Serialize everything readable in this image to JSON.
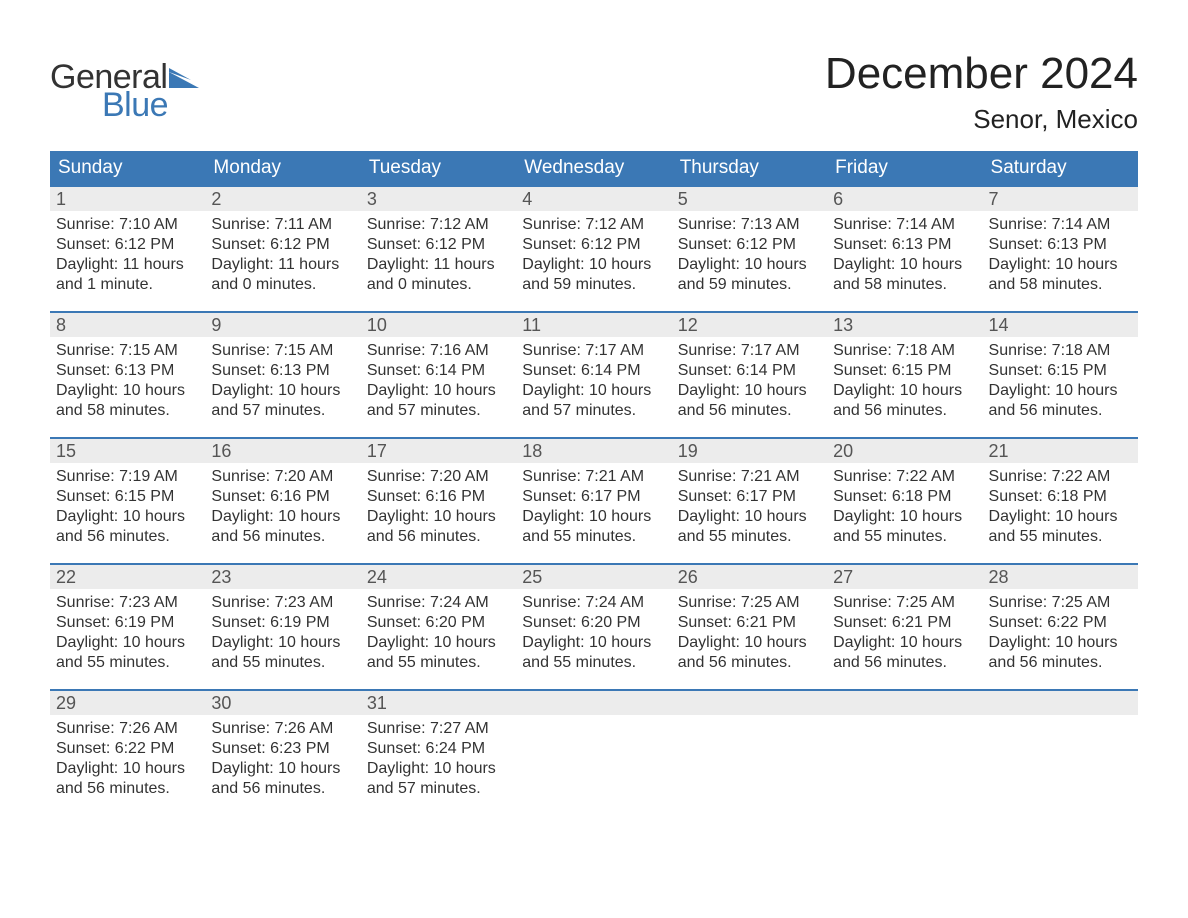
{
  "brand": {
    "general": "General",
    "blue": "Blue",
    "flag_color": "#3b78b5"
  },
  "title": {
    "month_year": "December 2024",
    "location": "Senor, Mexico"
  },
  "colors": {
    "header_bg": "#3b78b5",
    "header_text": "#ffffff",
    "daynum_bg": "#ececec",
    "daynum_text": "#555555",
    "body_text": "#333333",
    "week_border": "#3b78b5",
    "page_bg": "#ffffff"
  },
  "day_headers": [
    "Sunday",
    "Monday",
    "Tuesday",
    "Wednesday",
    "Thursday",
    "Friday",
    "Saturday"
  ],
  "weeks": [
    [
      {
        "n": "1",
        "sunrise": "Sunrise: 7:10 AM",
        "sunset": "Sunset: 6:12 PM",
        "d1": "Daylight: 11 hours",
        "d2": "and 1 minute."
      },
      {
        "n": "2",
        "sunrise": "Sunrise: 7:11 AM",
        "sunset": "Sunset: 6:12 PM",
        "d1": "Daylight: 11 hours",
        "d2": "and 0 minutes."
      },
      {
        "n": "3",
        "sunrise": "Sunrise: 7:12 AM",
        "sunset": "Sunset: 6:12 PM",
        "d1": "Daylight: 11 hours",
        "d2": "and 0 minutes."
      },
      {
        "n": "4",
        "sunrise": "Sunrise: 7:12 AM",
        "sunset": "Sunset: 6:12 PM",
        "d1": "Daylight: 10 hours",
        "d2": "and 59 minutes."
      },
      {
        "n": "5",
        "sunrise": "Sunrise: 7:13 AM",
        "sunset": "Sunset: 6:12 PM",
        "d1": "Daylight: 10 hours",
        "d2": "and 59 minutes."
      },
      {
        "n": "6",
        "sunrise": "Sunrise: 7:14 AM",
        "sunset": "Sunset: 6:13 PM",
        "d1": "Daylight: 10 hours",
        "d2": "and 58 minutes."
      },
      {
        "n": "7",
        "sunrise": "Sunrise: 7:14 AM",
        "sunset": "Sunset: 6:13 PM",
        "d1": "Daylight: 10 hours",
        "d2": "and 58 minutes."
      }
    ],
    [
      {
        "n": "8",
        "sunrise": "Sunrise: 7:15 AM",
        "sunset": "Sunset: 6:13 PM",
        "d1": "Daylight: 10 hours",
        "d2": "and 58 minutes."
      },
      {
        "n": "9",
        "sunrise": "Sunrise: 7:15 AM",
        "sunset": "Sunset: 6:13 PM",
        "d1": "Daylight: 10 hours",
        "d2": "and 57 minutes."
      },
      {
        "n": "10",
        "sunrise": "Sunrise: 7:16 AM",
        "sunset": "Sunset: 6:14 PM",
        "d1": "Daylight: 10 hours",
        "d2": "and 57 minutes."
      },
      {
        "n": "11",
        "sunrise": "Sunrise: 7:17 AM",
        "sunset": "Sunset: 6:14 PM",
        "d1": "Daylight: 10 hours",
        "d2": "and 57 minutes."
      },
      {
        "n": "12",
        "sunrise": "Sunrise: 7:17 AM",
        "sunset": "Sunset: 6:14 PM",
        "d1": "Daylight: 10 hours",
        "d2": "and 56 minutes."
      },
      {
        "n": "13",
        "sunrise": "Sunrise: 7:18 AM",
        "sunset": "Sunset: 6:15 PM",
        "d1": "Daylight: 10 hours",
        "d2": "and 56 minutes."
      },
      {
        "n": "14",
        "sunrise": "Sunrise: 7:18 AM",
        "sunset": "Sunset: 6:15 PM",
        "d1": "Daylight: 10 hours",
        "d2": "and 56 minutes."
      }
    ],
    [
      {
        "n": "15",
        "sunrise": "Sunrise: 7:19 AM",
        "sunset": "Sunset: 6:15 PM",
        "d1": "Daylight: 10 hours",
        "d2": "and 56 minutes."
      },
      {
        "n": "16",
        "sunrise": "Sunrise: 7:20 AM",
        "sunset": "Sunset: 6:16 PM",
        "d1": "Daylight: 10 hours",
        "d2": "and 56 minutes."
      },
      {
        "n": "17",
        "sunrise": "Sunrise: 7:20 AM",
        "sunset": "Sunset: 6:16 PM",
        "d1": "Daylight: 10 hours",
        "d2": "and 56 minutes."
      },
      {
        "n": "18",
        "sunrise": "Sunrise: 7:21 AM",
        "sunset": "Sunset: 6:17 PM",
        "d1": "Daylight: 10 hours",
        "d2": "and 55 minutes."
      },
      {
        "n": "19",
        "sunrise": "Sunrise: 7:21 AM",
        "sunset": "Sunset: 6:17 PM",
        "d1": "Daylight: 10 hours",
        "d2": "and 55 minutes."
      },
      {
        "n": "20",
        "sunrise": "Sunrise: 7:22 AM",
        "sunset": "Sunset: 6:18 PM",
        "d1": "Daylight: 10 hours",
        "d2": "and 55 minutes."
      },
      {
        "n": "21",
        "sunrise": "Sunrise: 7:22 AM",
        "sunset": "Sunset: 6:18 PM",
        "d1": "Daylight: 10 hours",
        "d2": "and 55 minutes."
      }
    ],
    [
      {
        "n": "22",
        "sunrise": "Sunrise: 7:23 AM",
        "sunset": "Sunset: 6:19 PM",
        "d1": "Daylight: 10 hours",
        "d2": "and 55 minutes."
      },
      {
        "n": "23",
        "sunrise": "Sunrise: 7:23 AM",
        "sunset": "Sunset: 6:19 PM",
        "d1": "Daylight: 10 hours",
        "d2": "and 55 minutes."
      },
      {
        "n": "24",
        "sunrise": "Sunrise: 7:24 AM",
        "sunset": "Sunset: 6:20 PM",
        "d1": "Daylight: 10 hours",
        "d2": "and 55 minutes."
      },
      {
        "n": "25",
        "sunrise": "Sunrise: 7:24 AM",
        "sunset": "Sunset: 6:20 PM",
        "d1": "Daylight: 10 hours",
        "d2": "and 55 minutes."
      },
      {
        "n": "26",
        "sunrise": "Sunrise: 7:25 AM",
        "sunset": "Sunset: 6:21 PM",
        "d1": "Daylight: 10 hours",
        "d2": "and 56 minutes."
      },
      {
        "n": "27",
        "sunrise": "Sunrise: 7:25 AM",
        "sunset": "Sunset: 6:21 PM",
        "d1": "Daylight: 10 hours",
        "d2": "and 56 minutes."
      },
      {
        "n": "28",
        "sunrise": "Sunrise: 7:25 AM",
        "sunset": "Sunset: 6:22 PM",
        "d1": "Daylight: 10 hours",
        "d2": "and 56 minutes."
      }
    ],
    [
      {
        "n": "29",
        "sunrise": "Sunrise: 7:26 AM",
        "sunset": "Sunset: 6:22 PM",
        "d1": "Daylight: 10 hours",
        "d2": "and 56 minutes."
      },
      {
        "n": "30",
        "sunrise": "Sunrise: 7:26 AM",
        "sunset": "Sunset: 6:23 PM",
        "d1": "Daylight: 10 hours",
        "d2": "and 56 minutes."
      },
      {
        "n": "31",
        "sunrise": "Sunrise: 7:27 AM",
        "sunset": "Sunset: 6:24 PM",
        "d1": "Daylight: 10 hours",
        "d2": "and 57 minutes."
      },
      {
        "empty": true
      },
      {
        "empty": true
      },
      {
        "empty": true
      },
      {
        "empty": true
      }
    ]
  ]
}
